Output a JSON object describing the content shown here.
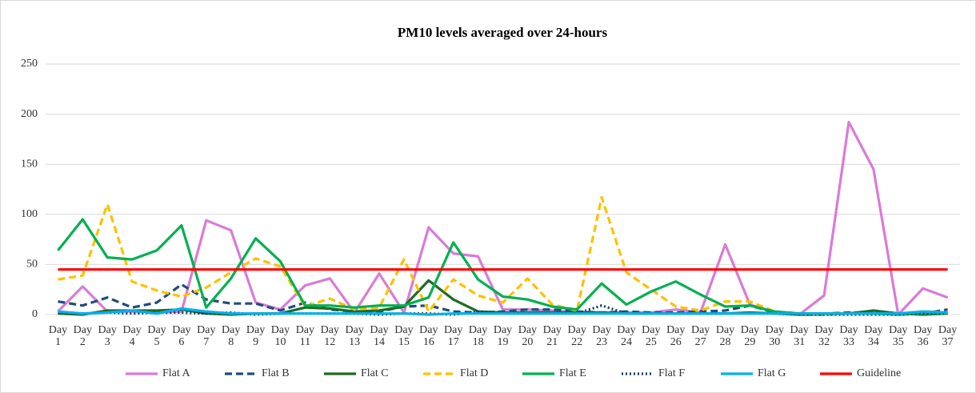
{
  "chart_data": {
    "type": "line",
    "title": "PM10 levels averaged over 24-hours",
    "categories": [
      "Day 1",
      "Day 2",
      "Day 3",
      "Day 4",
      "Day 5",
      "Day 6",
      "Day 7",
      "Day 8",
      "Day 9",
      "Day 10",
      "Day 11",
      "Day 12",
      "Day 13",
      "Day 14",
      "Day 15",
      "Day 16",
      "Day 17",
      "Day 18",
      "Day 19",
      "Day 20",
      "Day 21",
      "Day 22",
      "Day 23",
      "Day 24",
      "Day 25",
      "Day 26",
      "Day 27",
      "Day 28",
      "Day 29",
      "Day 30",
      "Day 31",
      "Day 32",
      "Day 33",
      "Day 34",
      "Day 35",
      "Day 36",
      "Day 37"
    ],
    "series": [
      {
        "name": "Flat A",
        "color": "#d97bd6",
        "dash": "solid",
        "values": [
          3,
          28,
          3,
          3,
          2,
          3,
          94,
          84,
          12,
          5,
          29,
          36,
          2,
          41,
          2,
          87,
          61,
          58,
          5,
          5,
          4,
          2,
          2,
          2,
          2,
          5,
          2,
          70,
          10,
          2,
          0,
          19,
          192,
          145,
          0,
          26,
          17
        ]
      },
      {
        "name": "Flat B",
        "color": "#1f4e79",
        "dash": "dash",
        "values": [
          13,
          9,
          17,
          7,
          12,
          30,
          15,
          11,
          11,
          4,
          12,
          5,
          3,
          3,
          8,
          9,
          3,
          2,
          3,
          5,
          5,
          3,
          2,
          3,
          2,
          2,
          3,
          4,
          9,
          2,
          1,
          1,
          2,
          2,
          1,
          1,
          5
        ]
      },
      {
        "name": "Flat C",
        "color": "#1e6b23",
        "dash": "solid",
        "values": [
          1,
          0,
          4,
          4,
          4,
          5,
          1,
          0,
          1,
          1,
          7,
          6,
          3,
          4,
          8,
          34,
          15,
          3,
          2,
          2,
          2,
          2,
          2,
          1,
          1,
          1,
          1,
          1,
          2,
          1,
          0,
          0,
          1,
          4,
          1,
          0,
          1
        ]
      },
      {
        "name": "Flat D",
        "color": "#ffc000",
        "dash": "dash",
        "values": [
          35,
          39,
          110,
          33,
          24,
          18,
          27,
          42,
          56,
          48,
          8,
          16,
          5,
          7,
          55,
          3,
          35,
          19,
          12,
          36,
          10,
          4,
          117,
          42,
          25,
          8,
          4,
          13,
          13,
          3,
          1,
          0,
          1,
          1,
          0,
          3,
          2
        ]
      },
      {
        "name": "Flat E",
        "color": "#00b050",
        "dash": "solid",
        "values": [
          64,
          95,
          57,
          55,
          64,
          89,
          7,
          36,
          76,
          53,
          9,
          9,
          7,
          9,
          9,
          17,
          72,
          35,
          18,
          15,
          8,
          5,
          31,
          10,
          23,
          33,
          20,
          8,
          9,
          3,
          1,
          1,
          1,
          1,
          0,
          1,
          1
        ]
      },
      {
        "name": "Flat F",
        "color": "#1f3864",
        "dash": "dot",
        "values": [
          2,
          1,
          2,
          1,
          2,
          2,
          1,
          2,
          0,
          1,
          1,
          1,
          1,
          0,
          1,
          1,
          0,
          3,
          1,
          1,
          1,
          1,
          9,
          1,
          1,
          1,
          1,
          1,
          1,
          1,
          0,
          0,
          0,
          0,
          0,
          1,
          1
        ]
      },
      {
        "name": "Flat G",
        "color": "#00b0f0",
        "dash": "solid",
        "values": [
          3,
          1,
          2,
          4,
          1,
          6,
          3,
          1,
          1,
          1,
          1,
          1,
          1,
          1,
          1,
          0,
          1,
          1,
          1,
          1,
          1,
          1,
          1,
          1,
          1,
          1,
          1,
          1,
          1,
          1,
          1,
          1,
          1,
          1,
          1,
          3,
          2
        ]
      },
      {
        "name": "Guideline",
        "color": "#ff0000",
        "dash": "solid",
        "values": [
          45,
          45,
          45,
          45,
          45,
          45,
          45,
          45,
          45,
          45,
          45,
          45,
          45,
          45,
          45,
          45,
          45,
          45,
          45,
          45,
          45,
          45,
          45,
          45,
          45,
          45,
          45,
          45,
          45,
          45,
          45,
          45,
          45,
          45,
          45,
          45,
          45
        ]
      }
    ],
    "ylim": [
      0,
      250
    ],
    "yticks": [
      0,
      50,
      100,
      150,
      200,
      250
    ],
    "grid": true,
    "legend": "bottom"
  }
}
